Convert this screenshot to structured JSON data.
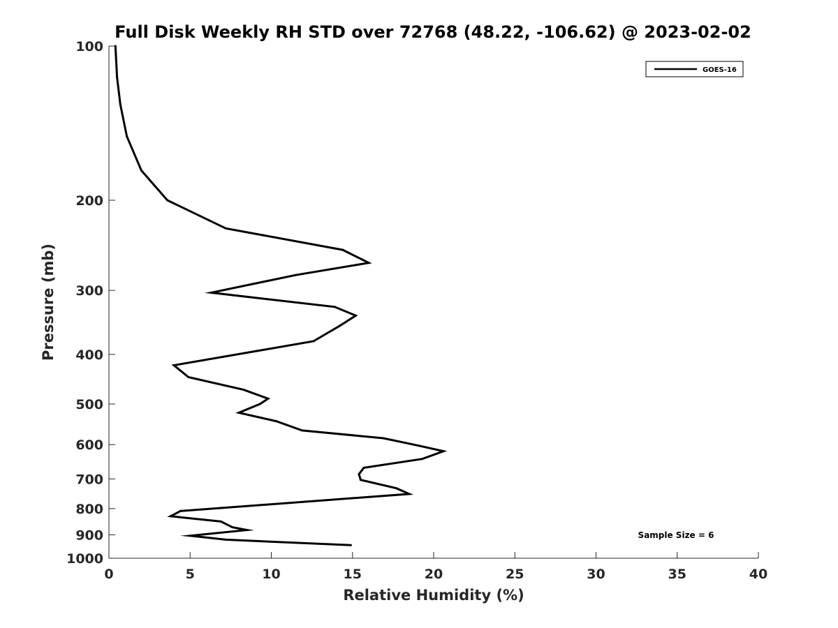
{
  "chart_data": {
    "type": "line",
    "title": "Full Disk Weekly RH STD over 72768 (48.22, -106.62) @ 2023-02-02",
    "xlabel": "Relative Humidity (%)",
    "ylabel": "Pressure (mb)",
    "xlim": [
      0,
      40
    ],
    "ylim": [
      100,
      1000
    ],
    "y_scale": "log",
    "y_reversed": true,
    "grid": false,
    "legend_position": "top-right",
    "x_ticks": [
      "0",
      "5",
      "10",
      "15",
      "20",
      "25",
      "30",
      "35",
      "40"
    ],
    "y_ticks": [
      "100",
      "200",
      "300",
      "400",
      "500",
      "600",
      "700",
      "800",
      "900",
      "1000"
    ],
    "series": [
      {
        "name": "GOES-16",
        "color": "#000000",
        "points": [
          [
            0.4,
            100
          ],
          [
            0.5,
            115
          ],
          [
            0.7,
            130
          ],
          [
            1.1,
            150
          ],
          [
            2.0,
            175
          ],
          [
            3.6,
            200
          ],
          [
            7.2,
            227
          ],
          [
            14.4,
            250
          ],
          [
            16.0,
            265
          ],
          [
            11.5,
            280
          ],
          [
            6.3,
            303
          ],
          [
            13.9,
            323
          ],
          [
            15.2,
            336
          ],
          [
            14.2,
            352
          ],
          [
            12.6,
            377
          ],
          [
            4.0,
            420
          ],
          [
            4.9,
            443
          ],
          [
            8.3,
            469
          ],
          [
            9.8,
            488
          ],
          [
            9.3,
            500
          ],
          [
            8.0,
            520
          ],
          [
            10.3,
            540
          ],
          [
            11.9,
            563
          ],
          [
            16.9,
            583
          ],
          [
            19.1,
            603
          ],
          [
            20.6,
            618
          ],
          [
            19.3,
            640
          ],
          [
            15.7,
            666
          ],
          [
            15.4,
            685
          ],
          [
            15.5,
            703
          ],
          [
            17.7,
            730
          ],
          [
            18.5,
            749
          ],
          [
            4.4,
            809
          ],
          [
            3.8,
            828
          ],
          [
            6.9,
            848
          ],
          [
            7.6,
            870
          ],
          [
            8.5,
            881
          ],
          [
            5.0,
            904
          ],
          [
            7.2,
            920
          ],
          [
            14.9,
            943
          ]
        ]
      }
    ],
    "annotation": "Sample Size = 6"
  }
}
